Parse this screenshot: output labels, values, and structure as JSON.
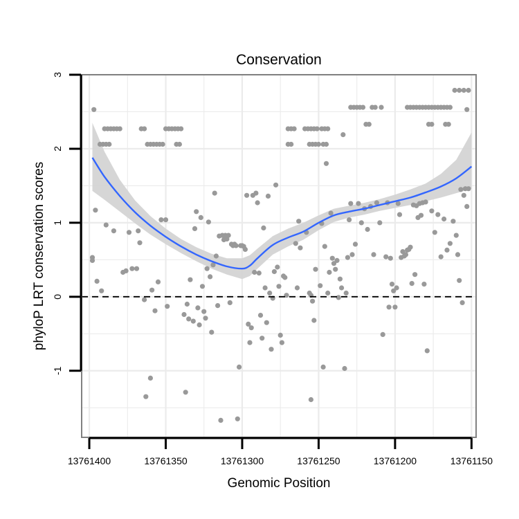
{
  "chart_data": {
    "type": "scatter",
    "title": "Conservation",
    "xlabel": "Genomic Position",
    "ylabel": "phyloP LRT conservation scores",
    "x_reversed": true,
    "xlim": [
      13761405,
      13761147
    ],
    "ylim": [
      -1.9,
      3.0
    ],
    "x_ticks": [
      13761400,
      13761350,
      13761300,
      13761250,
      13761200,
      13761150
    ],
    "y_ticks": [
      -1,
      0,
      1,
      2,
      3
    ],
    "grid": true,
    "reference_line": 0,
    "colors": {
      "points": "#999999",
      "smooth_line": "#3366ff",
      "ribbon": "#d4d4d4",
      "grid": "#ebebeb",
      "panel_border": "#808080"
    },
    "points": [
      [
        13761397,
        2.53
      ],
      [
        13761398,
        0.53
      ],
      [
        13761398,
        0.49
      ],
      [
        13761396,
        1.17
      ],
      [
        13761395,
        0.21
      ],
      [
        13761393,
        2.06
      ],
      [
        13761391,
        2.06
      ],
      [
        13761389,
        2.06
      ],
      [
        13761387,
        2.06
      ],
      [
        13761390,
        2.27
      ],
      [
        13761388,
        2.27
      ],
      [
        13761386,
        2.27
      ],
      [
        13761384,
        2.27
      ],
      [
        13761382,
        2.27
      ],
      [
        13761380,
        2.27
      ],
      [
        13761392,
        0.08
      ],
      [
        13761389,
        0.97
      ],
      [
        13761384,
        0.89
      ],
      [
        13761378,
        0.33
      ],
      [
        13761376,
        0.35
      ],
      [
        13761374,
        0.87
      ],
      [
        13761372,
        0.38
      ],
      [
        13761369,
        0.38
      ],
      [
        13761367,
        0.73
      ],
      [
        13761368,
        0.89
      ],
      [
        13761366,
        2.27
      ],
      [
        13761364,
        2.27
      ],
      [
        13761362,
        2.06
      ],
      [
        13761360,
        2.06
      ],
      [
        13761358,
        2.06
      ],
      [
        13761356,
        2.06
      ],
      [
        13761354,
        2.06
      ],
      [
        13761352,
        2.06
      ],
      [
        13761364,
        -0.04
      ],
      [
        13761363,
        -1.35
      ],
      [
        13761360,
        -1.1
      ],
      [
        13761359,
        0.09
      ],
      [
        13761357,
        -0.19
      ],
      [
        13761355,
        0.2
      ],
      [
        13761353,
        1.04
      ],
      [
        13761350,
        2.27
      ],
      [
        13761348,
        2.27
      ],
      [
        13761350,
        1.04
      ],
      [
        13761349,
        -0.13
      ],
      [
        13761346,
        2.27
      ],
      [
        13761344,
        2.27
      ],
      [
        13761342,
        2.27
      ],
      [
        13761340,
        2.27
      ],
      [
        13761343,
        2.06
      ],
      [
        13761341,
        2.06
      ],
      [
        13761338,
        -0.24
      ],
      [
        13761337,
        -1.29
      ],
      [
        13761336,
        -0.1
      ],
      [
        13761335,
        -0.3
      ],
      [
        13761334,
        0.23
      ],
      [
        13761332,
        -0.33
      ],
      [
        13761331,
        0.92
      ],
      [
        13761330,
        1.15
      ],
      [
        13761329,
        -0.15
      ],
      [
        13761328,
        -0.38
      ],
      [
        13761327,
        1.07
      ],
      [
        13761326,
        0.14
      ],
      [
        13761325,
        -0.2
      ],
      [
        13761324,
        -0.29
      ],
      [
        13761323,
        0.38
      ],
      [
        13761322,
        1.01
      ],
      [
        13761321,
        0.27
      ],
      [
        13761320,
        -0.48
      ],
      [
        13761319,
        0.43
      ],
      [
        13761318,
        1.4
      ],
      [
        13761317,
        0.55
      ],
      [
        13761316,
        -0.12
      ],
      [
        13761315,
        0.82
      ],
      [
        13761314,
        -1.67
      ],
      [
        13761313,
        0.83
      ],
      [
        13761312,
        0.77
      ],
      [
        13761311,
        0.83
      ],
      [
        13761310,
        0.78
      ],
      [
        13761309,
        0.83
      ],
      [
        13761308,
        -0.08
      ],
      [
        13761307,
        0.71
      ],
      [
        13761306,
        0.69
      ],
      [
        13761305,
        0.71
      ],
      [
        13761304,
        0.69
      ],
      [
        13761303,
        -1.65
      ],
      [
        13761302,
        -0.95
      ],
      [
        13761301,
        0.69
      ],
      [
        13761300,
        0.69
      ],
      [
        13761299,
        0.68
      ],
      [
        13761298,
        0.64
      ],
      [
        13761297,
        1.37
      ],
      [
        13761296,
        -0.37
      ],
      [
        13761295,
        -0.62
      ],
      [
        13761294,
        -0.42
      ],
      [
        13761293,
        1.37
      ],
      [
        13761292,
        0.33
      ],
      [
        13761291,
        1.4
      ],
      [
        13761290,
        1.27
      ],
      [
        13761289,
        0.32
      ],
      [
        13761288,
        -0.25
      ],
      [
        13761287,
        -0.56
      ],
      [
        13761286,
        0.93
      ],
      [
        13761285,
        0.12
      ],
      [
        13761284,
        -0.35
      ],
      [
        13761283,
        1.36
      ],
      [
        13761282,
        0.05
      ],
      [
        13761281,
        -0.71
      ],
      [
        13761280,
        -0.02
      ],
      [
        13761279,
        0.34
      ],
      [
        13761278,
        1.51
      ],
      [
        13761277,
        0.4
      ],
      [
        13761276,
        0.14
      ],
      [
        13761275,
        -0.52
      ],
      [
        13761274,
        -0.62
      ],
      [
        13761273,
        0.28
      ],
      [
        13761272,
        0.26
      ],
      [
        13761271,
        0.02
      ],
      [
        13761270,
        2.27
      ],
      [
        13761268,
        2.27
      ],
      [
        13761266,
        2.27
      ],
      [
        13761270,
        2.06
      ],
      [
        13761268,
        2.06
      ],
      [
        13761265,
        0.72
      ],
      [
        13761264,
        0.12
      ],
      [
        13761263,
        1.02
      ],
      [
        13761262,
        0.66
      ],
      [
        13761259,
        2.27
      ],
      [
        13761257,
        2.27
      ],
      [
        13761255,
        2.27
      ],
      [
        13761253,
        2.27
      ],
      [
        13761251,
        2.27
      ],
      [
        13761256,
        2.06
      ],
      [
        13761254,
        2.06
      ],
      [
        13761252,
        2.06
      ],
      [
        13761250,
        2.06
      ],
      [
        13761258,
        0.87
      ],
      [
        13761256,
        0.05
      ],
      [
        13761255,
        0.02
      ],
      [
        13761254,
        -0.06
      ],
      [
        13761253,
        -0.32
      ],
      [
        13761255,
        -1.39
      ],
      [
        13761252,
        0.37
      ],
      [
        13761248,
        2.27
      ],
      [
        13761246,
        2.27
      ],
      [
        13761244,
        2.27
      ],
      [
        13761247,
        2.06
      ],
      [
        13761245,
        2.06
      ],
      [
        13761249,
        0.15
      ],
      [
        13761248,
        0.99
      ],
      [
        13761247,
        -0.95
      ],
      [
        13761246,
        0.68
      ],
      [
        13761245,
        1.8
      ],
      [
        13761244,
        0.05
      ],
      [
        13761243,
        0.33
      ],
      [
        13761242,
        1.13
      ],
      [
        13761241,
        0.52
      ],
      [
        13761240,
        0.45
      ],
      [
        13761239,
        0.37
      ],
      [
        13761238,
        0.49
      ],
      [
        13761237,
        -0.01
      ],
      [
        13761236,
        0.24
      ],
      [
        13761235,
        0.12
      ],
      [
        13761234,
        2.19
      ],
      [
        13761233,
        -0.97
      ],
      [
        13761232,
        0.05
      ],
      [
        13761231,
        0.53
      ],
      [
        13761229,
        2.56
      ],
      [
        13761227,
        2.56
      ],
      [
        13761225,
        2.56
      ],
      [
        13761223,
        2.56
      ],
      [
        13761221,
        2.56
      ],
      [
        13761219,
        2.33
      ],
      [
        13761217,
        2.33
      ],
      [
        13761215,
        2.56
      ],
      [
        13761213,
        2.56
      ],
      [
        13761209,
        2.56
      ],
      [
        13761230,
        1.04
      ],
      [
        13761229,
        1.26
      ],
      [
        13761228,
        0.57
      ],
      [
        13761226,
        0.71
      ],
      [
        13761224,
        1.26
      ],
      [
        13761222,
        1.0
      ],
      [
        13761220,
        1.19
      ],
      [
        13761218,
        0.91
      ],
      [
        13761216,
        1.22
      ],
      [
        13761214,
        0.57
      ],
      [
        13761212,
        1.27
      ],
      [
        13761210,
        1.0
      ],
      [
        13761208,
        -0.51
      ],
      [
        13761206,
        0.54
      ],
      [
        13761205,
        1.27
      ],
      [
        13761204,
        -0.14
      ],
      [
        13761203,
        0.52
      ],
      [
        13761202,
        0.17
      ],
      [
        13761201,
        0.08
      ],
      [
        13761200,
        -0.14
      ],
      [
        13761199,
        0.12
      ],
      [
        13761198,
        1.26
      ],
      [
        13761197,
        1.11
      ],
      [
        13761196,
        0.53
      ],
      [
        13761195,
        0.61
      ],
      [
        13761194,
        0.55
      ],
      [
        13761193,
        0.57
      ],
      [
        13761192,
        0.63
      ],
      [
        13761191,
        0.64
      ],
      [
        13761190,
        0.67
      ],
      [
        13761189,
        0.18
      ],
      [
        13761188,
        1.24
      ],
      [
        13761192,
        2.56
      ],
      [
        13761190,
        2.56
      ],
      [
        13761188,
        2.56
      ],
      [
        13761186,
        2.56
      ],
      [
        13761184,
        2.56
      ],
      [
        13761182,
        2.56
      ],
      [
        13761180,
        2.56
      ],
      [
        13761178,
        2.56
      ],
      [
        13761176,
        2.56
      ],
      [
        13761174,
        2.56
      ],
      [
        13761172,
        2.56
      ],
      [
        13761170,
        2.56
      ],
      [
        13761168,
        2.56
      ],
      [
        13761166,
        2.56
      ],
      [
        13761164,
        2.56
      ],
      [
        13761178,
        2.33
      ],
      [
        13761176,
        2.33
      ],
      [
        13761167,
        2.33
      ],
      [
        13761165,
        2.33
      ],
      [
        13761187,
        0.3
      ],
      [
        13761186,
        1.23
      ],
      [
        13761185,
        1.07
      ],
      [
        13761184,
        1.26
      ],
      [
        13761183,
        1.1
      ],
      [
        13761182,
        1.27
      ],
      [
        13761181,
        0.17
      ],
      [
        13761180,
        1.28
      ],
      [
        13761179,
        -0.73
      ],
      [
        13761176,
        1.16
      ],
      [
        13761174,
        0.87
      ],
      [
        13761172,
        1.11
      ],
      [
        13761170,
        0.54
      ],
      [
        13761168,
        1.05
      ],
      [
        13761166,
        0.63
      ],
      [
        13761164,
        0.72
      ],
      [
        13761162,
        1.02
      ],
      [
        13761160,
        0.83
      ],
      [
        13761159,
        0.57
      ],
      [
        13761158,
        0.22
      ],
      [
        13761157,
        1.45
      ],
      [
        13761156,
        -0.08
      ],
      [
        13761155,
        1.37
      ],
      [
        13761154,
        1.46
      ],
      [
        13761153,
        1.22
      ],
      [
        13761152,
        1.46
      ],
      [
        13761161,
        2.79
      ],
      [
        13761158,
        2.79
      ],
      [
        13761155,
        2.79
      ],
      [
        13761152,
        2.79
      ],
      [
        13761153,
        2.53
      ]
    ],
    "smooth": {
      "x": [
        13761398,
        13761390,
        13761380,
        13761370,
        13761360,
        13761350,
        13761340,
        13761330,
        13761320,
        13761310,
        13761300,
        13761295,
        13761290,
        13761280,
        13761270,
        13761260,
        13761250,
        13761240,
        13761230,
        13761220,
        13761210,
        13761200,
        13761190,
        13761180,
        13761170,
        13761160,
        13761150
      ],
      "y": [
        1.88,
        1.62,
        1.36,
        1.14,
        0.96,
        0.81,
        0.68,
        0.57,
        0.48,
        0.41,
        0.38,
        0.42,
        0.52,
        0.7,
        0.8,
        0.88,
        1.0,
        1.1,
        1.15,
        1.19,
        1.24,
        1.29,
        1.34,
        1.41,
        1.49,
        1.6,
        1.76
      ],
      "lower": [
        1.43,
        1.31,
        1.15,
        0.99,
        0.84,
        0.71,
        0.59,
        0.48,
        0.38,
        0.3,
        0.24,
        0.28,
        0.38,
        0.57,
        0.68,
        0.77,
        0.9,
        1.01,
        1.07,
        1.11,
        1.16,
        1.2,
        1.24,
        1.29,
        1.34,
        1.4,
        1.46
      ],
      "upper": [
        2.35,
        1.96,
        1.58,
        1.3,
        1.09,
        0.92,
        0.78,
        0.67,
        0.58,
        0.52,
        0.52,
        0.56,
        0.65,
        0.82,
        0.92,
        1.0,
        1.1,
        1.19,
        1.23,
        1.27,
        1.32,
        1.38,
        1.45,
        1.53,
        1.66,
        1.85,
        2.22
      ]
    }
  }
}
